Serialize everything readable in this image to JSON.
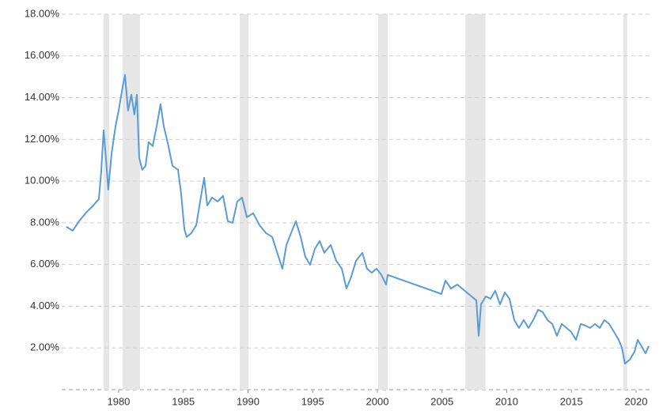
{
  "chart_data": {
    "type": "line",
    "x": [
      1975.96,
      1976.45,
      1976.94,
      1977.55,
      1978.04,
      1978.47,
      1978.65,
      1978.84,
      1979.02,
      1979.2,
      1979.45,
      1979.76,
      1980.0,
      1980.31,
      1980.49,
      1980.73,
      1980.98,
      1981.22,
      1981.41,
      1981.59,
      1981.83,
      1982.08,
      1982.32,
      1982.63,
      1982.94,
      1983.24,
      1983.49,
      1983.85,
      1984.16,
      1984.59,
      1984.83,
      1985.08,
      1985.26,
      1985.63,
      1986.0,
      1986.3,
      1986.61,
      1986.85,
      1987.22,
      1987.65,
      1988.07,
      1988.44,
      1988.81,
      1989.17,
      1989.54,
      1989.91,
      1990.4,
      1990.89,
      1991.38,
      1991.87,
      1992.36,
      1992.66,
      1992.97,
      1993.33,
      1993.7,
      1994.07,
      1994.43,
      1994.8,
      1995.17,
      1995.54,
      1995.9,
      1996.39,
      1996.82,
      1997.25,
      1997.61,
      1997.98,
      1998.35,
      1998.84,
      1999.2,
      1999.57,
      1999.94,
      2000.31,
      2000.67,
      2000.8,
      2004.95,
      2005.26,
      2005.69,
      2006.18,
      2006.54,
      2006.91,
      2007.28,
      2007.65,
      2007.83,
      2008.01,
      2008.38,
      2008.75,
      2009.11,
      2009.48,
      2009.85,
      2010.21,
      2010.58,
      2010.95,
      2011.31,
      2011.68,
      2012.05,
      2012.42,
      2012.78,
      2013.15,
      2013.52,
      2013.88,
      2014.25,
      2014.62,
      2014.98,
      2015.35,
      2015.72,
      2016.09,
      2016.45,
      2016.82,
      2017.19,
      2017.55,
      2017.92,
      2018.29,
      2018.65,
      2018.9,
      2019.14,
      2019.51,
      2019.88,
      2020.12,
      2020.49,
      2020.73,
      2020.98
    ],
    "series": [
      {
        "color": "#5b9bd5",
        "values": [
          7.81,
          7.62,
          8.08,
          8.53,
          8.83,
          9.14,
          10.43,
          12.44,
          11.11,
          9.59,
          11.3,
          12.63,
          13.38,
          14.52,
          15.09,
          13.38,
          14.14,
          13.19,
          14.14,
          11.11,
          10.54,
          10.73,
          11.87,
          11.68,
          12.63,
          13.69,
          12.63,
          11.68,
          10.73,
          10.54,
          9.4,
          7.7,
          7.32,
          7.51,
          7.89,
          9.02,
          10.16,
          8.83,
          9.21,
          9.02,
          9.29,
          8.08,
          8.0,
          9.02,
          9.21,
          8.27,
          8.46,
          7.89,
          7.51,
          7.32,
          6.37,
          5.8,
          6.94,
          7.51,
          8.08,
          7.32,
          6.37,
          5.99,
          6.75,
          7.13,
          6.56,
          6.94,
          6.18,
          5.8,
          4.85,
          5.42,
          6.18,
          6.56,
          5.8,
          5.61,
          5.8,
          5.5,
          5.04,
          5.5,
          4.59,
          5.23,
          4.85,
          5.04,
          4.85,
          4.66,
          4.47,
          4.28,
          2.58,
          4.09,
          4.47,
          4.36,
          4.74,
          4.09,
          4.66,
          4.36,
          3.34,
          2.96,
          3.34,
          2.96,
          3.34,
          3.83,
          3.72,
          3.34,
          3.15,
          2.58,
          3.15,
          2.96,
          2.77,
          2.39,
          3.15,
          3.07,
          2.96,
          3.15,
          2.96,
          3.34,
          3.15,
          2.77,
          2.39,
          2.01,
          1.25,
          1.44,
          1.82,
          2.39,
          2.01,
          1.74,
          2.09
        ]
      }
    ],
    "shaded_ranges": [
      [
        1978.84,
        1979.27
      ],
      [
        1980.3,
        1981.65
      ],
      [
        1989.36,
        1990.03
      ],
      [
        2000.06,
        2000.8
      ],
      [
        2006.8,
        2008.35
      ],
      [
        2019.0,
        2019.3
      ]
    ],
    "shade_color": "#e6e6e6",
    "xlim": [
      1975.6,
      2021.1
    ],
    "xticks": [
      1980,
      1985,
      1990,
      1995,
      2000,
      2005,
      2010,
      2015,
      2020
    ],
    "ylim": [
      0,
      18
    ],
    "yticks": [
      {
        "value": 2,
        "label": "2.00%"
      },
      {
        "value": 4,
        "label": "4.00%"
      },
      {
        "value": 6,
        "label": "6.00%"
      },
      {
        "value": 8,
        "label": "8.00%"
      },
      {
        "value": 10,
        "label": "10.00%"
      },
      {
        "value": 12,
        "label": "12.00%"
      },
      {
        "value": 14,
        "label": "14.00%"
      },
      {
        "value": 16,
        "label": "16.00%"
      },
      {
        "value": 18,
        "label": "18.00%"
      }
    ],
    "grid": true
  }
}
